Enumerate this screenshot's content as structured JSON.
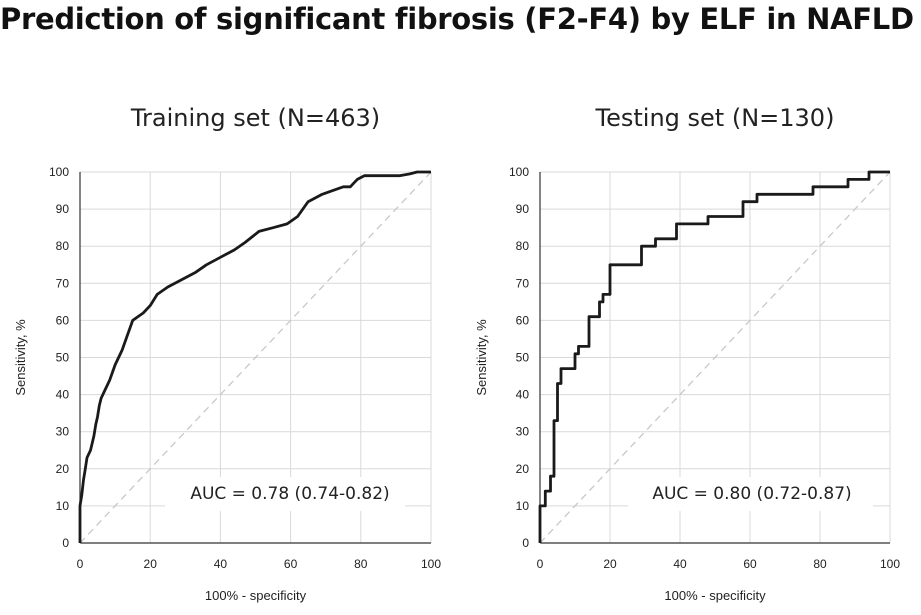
{
  "title": "Prediction of significant fibrosis (F2-F4) by ELF in NAFLD",
  "chart_data": [
    {
      "type": "line",
      "title": "Training set (N=463)",
      "xlabel": "100% - specificity",
      "ylabel": "Sensitivity, %",
      "xlim": [
        0,
        100
      ],
      "ylim": [
        0,
        100
      ],
      "xticks": [
        "0",
        "20",
        "40",
        "60",
        "80",
        "100"
      ],
      "yticks": [
        "0",
        "10",
        "20",
        "30",
        "40",
        "50",
        "60",
        "70",
        "80",
        "90",
        "100"
      ],
      "grid": true,
      "annotation": "AUC = 0.78 (0.74-0.82)",
      "series": [
        {
          "style": "solid",
          "color": "#1a1a1a",
          "x": [
            0,
            0,
            0.5,
            1,
            1.5,
            2,
            3,
            3.5,
            4,
            4.5,
            5,
            5.5,
            6,
            7,
            8,
            8.5,
            10,
            12,
            15,
            18,
            20,
            22,
            25,
            29,
            33,
            36,
            40,
            44,
            47,
            51,
            55,
            59,
            62,
            65,
            69,
            72,
            75,
            77,
            78,
            79,
            81,
            84,
            87,
            91,
            94,
            96,
            99,
            100
          ],
          "y": [
            0,
            10,
            13,
            17,
            20,
            23,
            25,
            27,
            29,
            32,
            34,
            37,
            39,
            41,
            43,
            44,
            48,
            52,
            60,
            62,
            64,
            67,
            69,
            71,
            73,
            75,
            77,
            79,
            81,
            84,
            85,
            86,
            88,
            92,
            94,
            95,
            96,
            96,
            97,
            98,
            99,
            99,
            99,
            99,
            99.5,
            100,
            100,
            100
          ]
        },
        {
          "style": "dashed",
          "color": "#c8c8c8",
          "x": [
            0,
            100
          ],
          "y": [
            0,
            100
          ]
        }
      ]
    },
    {
      "type": "line",
      "title": "Testing set (N=130)",
      "xlabel": "100% - specificity",
      "ylabel": "Sensitivity, %",
      "xlim": [
        0,
        100
      ],
      "ylim": [
        0,
        100
      ],
      "xticks": [
        "0",
        "20",
        "40",
        "60",
        "80",
        "100"
      ],
      "yticks": [
        "0",
        "10",
        "20",
        "30",
        "40",
        "50",
        "60",
        "70",
        "80",
        "90",
        "100"
      ],
      "grid": true,
      "annotation": "AUC = 0.80 (0.72-0.87)",
      "series": [
        {
          "style": "solid",
          "color": "#1a1a1a",
          "x": [
            0,
            0,
            1.5,
            1.5,
            3,
            3,
            4,
            4,
            5,
            5,
            6,
            6,
            10,
            10,
            11,
            11,
            14,
            14,
            17,
            17,
            18,
            18,
            20,
            20,
            22,
            22,
            29,
            29,
            33,
            33,
            39,
            39,
            48,
            48,
            58,
            58,
            62,
            62,
            78,
            78,
            88,
            88,
            94,
            94,
            100
          ],
          "y": [
            0,
            10,
            10,
            14,
            14,
            18,
            18,
            33,
            33,
            43,
            43,
            47,
            47,
            51,
            51,
            53,
            53,
            61,
            61,
            65,
            65,
            67,
            67,
            75,
            75,
            75,
            75,
            80,
            80,
            82,
            82,
            86,
            86,
            88,
            88,
            92,
            92,
            94,
            94,
            96,
            96,
            98,
            98,
            100,
            100
          ]
        },
        {
          "style": "dashed",
          "color": "#c8c8c8",
          "x": [
            0,
            100
          ],
          "y": [
            0,
            100
          ]
        }
      ]
    }
  ]
}
